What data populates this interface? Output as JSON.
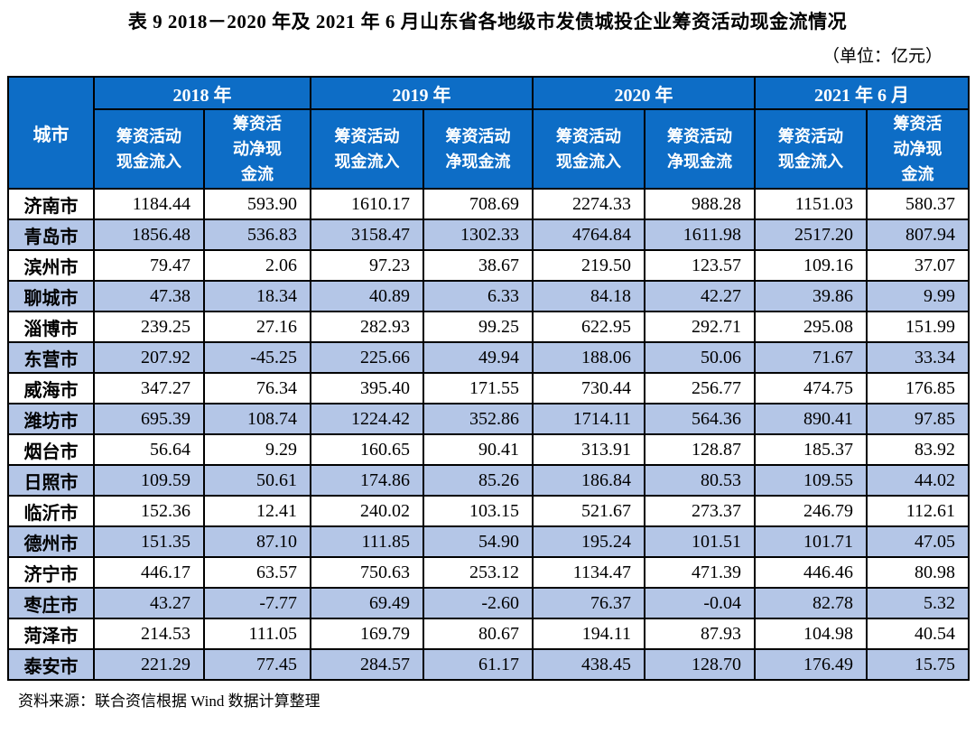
{
  "page": {
    "title": "表 9  2018－2020 年及 2021 年 6 月山东省各地级市发债城投企业筹资活动现金流情况",
    "unit_note": "（单位：亿元）",
    "source_note": "资料来源：联合资信根据 Wind 数据计算整理"
  },
  "colors": {
    "header_bg": "#0D6DC6",
    "stripe_bg": "#B4C6E7",
    "border": "#000000",
    "header_text": "#FFFFFF",
    "text": "#000000"
  },
  "chart_data": {
    "type": "table",
    "title": "2018－2020 年及 2021 年 6 月山东省各地级市发债城投企业筹资活动现金流情况",
    "unit": "亿元",
    "corner_header": "城市",
    "column_groups": [
      {
        "label": "2018 年",
        "sub": [
          "筹资活动\n现金流入",
          "筹资活\n动净现\n金流"
        ]
      },
      {
        "label": "2019 年",
        "sub": [
          "筹资活动\n现金流入",
          "筹资活动\n净现金流"
        ]
      },
      {
        "label": "2020 年",
        "sub": [
          "筹资活动\n现金流入",
          "筹资活动\n净现金流"
        ]
      },
      {
        "label": "2021 年 6 月",
        "sub": [
          "筹资活动\n现金流入",
          "筹资活\n动净现\n金流"
        ]
      }
    ],
    "rows": [
      {
        "city": "济南市",
        "values": [
          "1184.44",
          "593.90",
          "1610.17",
          "708.69",
          "2274.33",
          "988.28",
          "1151.03",
          "580.37"
        ]
      },
      {
        "city": "青岛市",
        "values": [
          "1856.48",
          "536.83",
          "3158.47",
          "1302.33",
          "4764.84",
          "1611.98",
          "2517.20",
          "807.94"
        ]
      },
      {
        "city": "滨州市",
        "values": [
          "79.47",
          "2.06",
          "97.23",
          "38.67",
          "219.50",
          "123.57",
          "109.16",
          "37.07"
        ]
      },
      {
        "city": "聊城市",
        "values": [
          "47.38",
          "18.34",
          "40.89",
          "6.33",
          "84.18",
          "42.27",
          "39.86",
          "9.99"
        ]
      },
      {
        "city": "淄博市",
        "values": [
          "239.25",
          "27.16",
          "282.93",
          "99.25",
          "622.95",
          "292.71",
          "295.08",
          "151.99"
        ]
      },
      {
        "city": "东营市",
        "values": [
          "207.92",
          "-45.25",
          "225.66",
          "49.94",
          "188.06",
          "50.06",
          "71.67",
          "33.34"
        ]
      },
      {
        "city": "威海市",
        "values": [
          "347.27",
          "76.34",
          "395.40",
          "171.55",
          "730.44",
          "256.77",
          "474.75",
          "176.85"
        ]
      },
      {
        "city": "潍坊市",
        "values": [
          "695.39",
          "108.74",
          "1224.42",
          "352.86",
          "1714.11",
          "564.36",
          "890.41",
          "97.85"
        ]
      },
      {
        "city": "烟台市",
        "values": [
          "56.64",
          "9.29",
          "160.65",
          "90.41",
          "313.91",
          "128.87",
          "185.37",
          "83.92"
        ]
      },
      {
        "city": "日照市",
        "values": [
          "109.59",
          "50.61",
          "174.86",
          "85.26",
          "186.84",
          "80.53",
          "109.55",
          "44.02"
        ]
      },
      {
        "city": "临沂市",
        "values": [
          "152.36",
          "12.41",
          "240.02",
          "103.15",
          "521.67",
          "273.37",
          "246.79",
          "112.61"
        ]
      },
      {
        "city": "德州市",
        "values": [
          "151.35",
          "87.10",
          "111.85",
          "54.90",
          "195.24",
          "101.51",
          "101.71",
          "47.05"
        ]
      },
      {
        "city": "济宁市",
        "values": [
          "446.17",
          "63.57",
          "750.63",
          "253.12",
          "1134.47",
          "471.39",
          "446.46",
          "80.98"
        ]
      },
      {
        "city": "枣庄市",
        "values": [
          "43.27",
          "-7.77",
          "69.49",
          "-2.60",
          "76.37",
          "-0.04",
          "82.78",
          "5.32"
        ]
      },
      {
        "city": "菏泽市",
        "values": [
          "214.53",
          "111.05",
          "169.79",
          "80.67",
          "194.11",
          "87.93",
          "104.98",
          "40.54"
        ]
      },
      {
        "city": "泰安市",
        "values": [
          "221.29",
          "77.45",
          "284.57",
          "61.17",
          "438.45",
          "128.70",
          "176.49",
          "15.75"
        ]
      }
    ]
  }
}
